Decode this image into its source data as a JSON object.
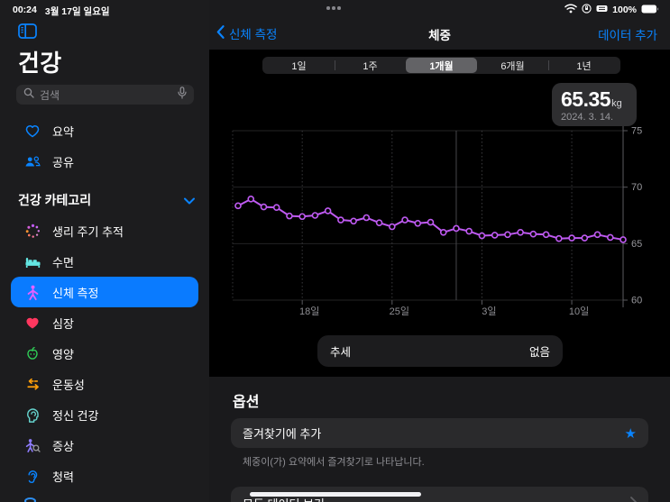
{
  "status_bar": {
    "time": "00:24",
    "date": "3월 17일 일요일",
    "battery_percent": "100%",
    "right_icons": [
      "wifi-icon",
      "orientation-lock-icon",
      "keyboard-battery-icon",
      "battery-icon"
    ]
  },
  "sidebar": {
    "title": "건강",
    "search": {
      "placeholder": "검색"
    },
    "items": [
      {
        "label": "요약",
        "icon": "heart-outline-icon"
      },
      {
        "label": "공유",
        "icon": "people-icon"
      }
    ],
    "section_header": {
      "label": "건강 카테고리"
    },
    "categories": [
      {
        "label": "생리 주기 추적",
        "icon": "cycle-tracking-icon"
      },
      {
        "label": "수면",
        "icon": "bed-icon"
      },
      {
        "label": "신체 측정",
        "icon": "figure-icon",
        "selected": true
      },
      {
        "label": "심장",
        "icon": "heart-filled-icon"
      },
      {
        "label": "영양",
        "icon": "apple-icon"
      },
      {
        "label": "운동성",
        "icon": "mobility-arrows-icon"
      },
      {
        "label": "정신 건강",
        "icon": "mind-icon"
      },
      {
        "label": "증상",
        "icon": "symptoms-icon"
      },
      {
        "label": "청력",
        "icon": "ear-icon"
      }
    ]
  },
  "nav": {
    "back": "신체 측정",
    "title": "체중",
    "action": "데이터 추가"
  },
  "chart_data": {
    "type": "line",
    "title": "체중",
    "unit": "kg",
    "range_tabs": [
      "1일",
      "1주",
      "1개월",
      "6개월",
      "1년"
    ],
    "selected_tab_index": 2,
    "selected_point": {
      "value": "65.35",
      "unit": "kg",
      "date": "2024. 3. 14."
    },
    "values": [
      68.35,
      68.95,
      68.25,
      68.2,
      67.45,
      67.4,
      67.5,
      67.9,
      67.1,
      67.0,
      67.3,
      66.85,
      66.5,
      67.1,
      66.8,
      66.9,
      66.0,
      66.35,
      66.1,
      65.7,
      65.75,
      65.8,
      66.0,
      65.85,
      65.8,
      65.45,
      65.5,
      65.5,
      65.8,
      65.55,
      65.35
    ],
    "ylim": [
      60,
      75
    ],
    "y_ticks": [
      75,
      70,
      65,
      60
    ],
    "x_tick_labels": [
      {
        "label": "18일",
        "index": 5
      },
      {
        "label": "25일",
        "index": 12
      },
      {
        "label": "3일",
        "index": 19
      },
      {
        "label": "10일",
        "index": 26
      }
    ],
    "month_boundary_index": 17,
    "selection_index": 30,
    "line_color": "#bf5af2",
    "grid": true,
    "legend": "none",
    "trend": {
      "label": "추세",
      "value": "없음"
    }
  },
  "options": {
    "heading": "옵션",
    "favorite": {
      "label": "즐겨찾기에 추가",
      "icon": "star-icon",
      "accent": "#0a84ff"
    },
    "favorite_caption": "체중이(가) 요약에서 즐겨찾기로 나타납니다.",
    "all_data": {
      "label": "모든 데이터 보기",
      "icon": "chevron-right-icon"
    }
  }
}
